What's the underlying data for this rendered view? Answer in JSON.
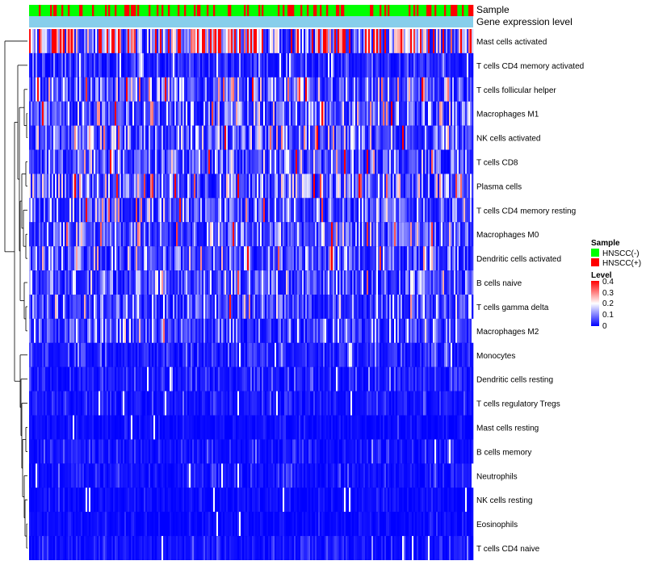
{
  "chart_data": {
    "type": "heatmap",
    "annotation_tracks": [
      "Sample",
      "Gene expression level"
    ],
    "rows": [
      "Mast cells activated",
      "T cells CD4 memory activated",
      "T cells follicular helper",
      "Macrophages M1",
      "NK cells activated",
      "T cells CD8",
      "Plasma cells",
      "T cells CD4 memory resting",
      "Macrophages M0",
      "Dendritic cells activated",
      "B cells naive",
      "T cells gamma delta",
      "Macrophages M2",
      "Monocytes",
      "Dendritic cells resting",
      "T cells regulatory  Tregs",
      "Mast cells resting",
      "B cells memory",
      "Neutrophils",
      "NK cells resting",
      "Eosinophils",
      "T cells CD4 naive"
    ],
    "row_mean_level": [
      0.28,
      0.04,
      0.1,
      0.09,
      0.1,
      0.08,
      0.11,
      0.09,
      0.09,
      0.08,
      0.07,
      0.07,
      0.06,
      0.04,
      0.03,
      0.02,
      0.01,
      0.02,
      0.02,
      0.01,
      0.01,
      0.02
    ],
    "n_samples": 275,
    "color_scale": {
      "min": 0,
      "max": 0.4,
      "low": "#0000ff",
      "mid": "#ffffff",
      "high": "#ff0000",
      "mid_value": 0.2
    },
    "legend": {
      "sample_title": "Sample",
      "sample_entries": [
        {
          "label": "HNSCC(-)",
          "color": "#00ff00"
        },
        {
          "label": "HNSCC(+)",
          "color": "#ff0000"
        }
      ],
      "level_title": "Level",
      "level_ticks": [
        "0.4",
        "0.3",
        "0.2",
        "0.1",
        "0"
      ]
    },
    "gene_expression_color": "#87ceeb"
  }
}
